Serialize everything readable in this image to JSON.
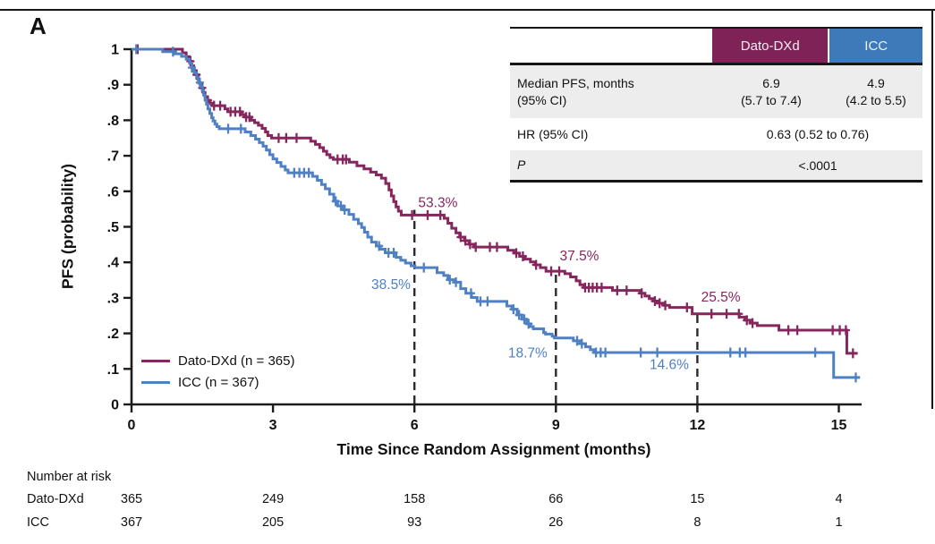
{
  "panel_label": "A",
  "colors": {
    "maroon": "#7E2257",
    "maroon_line": "#85265D",
    "blue_header": "#3E79B9",
    "blue_line": "#4F80C4",
    "blue_text": "#5583C6",
    "row_gray": "#EDEDED",
    "axis": "#1c1c1c"
  },
  "stats_table": {
    "col_headers": [
      "Dato-DXd",
      "ICC"
    ],
    "rows": [
      {
        "label_line1": "Median PFS, months",
        "label_line2": "(95% CI)",
        "dato_line1": "6.9",
        "dato_line2": "(5.7 to 7.4)",
        "icc_line1": "4.9",
        "icc_line2": "(4.2 to 5.5)"
      },
      {
        "label": "HR (95% CI)",
        "value": "0.63 (0.52 to 0.76)"
      },
      {
        "label": "P",
        "value": "<.0001"
      }
    ]
  },
  "chart_data": {
    "type": "line",
    "subtype": "kaplan-meier-step",
    "title": "",
    "xlabel": "Time Since Random Assignment (months)",
    "ylabel": "PFS (probability)",
    "xlim": [
      0,
      15.5
    ],
    "ylim": [
      0,
      1
    ],
    "xticks": [
      0,
      3,
      6,
      9,
      12,
      15
    ],
    "ytick_labels": [
      "0",
      ".1",
      ".2",
      ".3",
      ".4",
      ".5",
      ".6",
      ".7",
      ".8",
      ".9",
      "1"
    ],
    "grid": false,
    "legend_position": "lower-left-inside",
    "series": [
      {
        "name": "Dato-DXd (n = 365)",
        "color_key": "maroon_line",
        "steps": [
          [
            0,
            1
          ],
          [
            1.08,
            0.99
          ],
          [
            1.16,
            0.979
          ],
          [
            1.23,
            0.966
          ],
          [
            1.27,
            0.953
          ],
          [
            1.32,
            0.94
          ],
          [
            1.37,
            0.928
          ],
          [
            1.41,
            0.916
          ],
          [
            1.44,
            0.904
          ],
          [
            1.48,
            0.891
          ],
          [
            1.52,
            0.878
          ],
          [
            1.56,
            0.866
          ],
          [
            1.61,
            0.856
          ],
          [
            1.66,
            0.848
          ],
          [
            1.72,
            0.841
          ],
          [
            1.98,
            0.832
          ],
          [
            2.04,
            0.824
          ],
          [
            2.34,
            0.816
          ],
          [
            2.41,
            0.809
          ],
          [
            2.54,
            0.8
          ],
          [
            2.61,
            0.793
          ],
          [
            2.69,
            0.786
          ],
          [
            2.77,
            0.777
          ],
          [
            2.84,
            0.767
          ],
          [
            2.89,
            0.757
          ],
          [
            2.97,
            0.75
          ],
          [
            3.8,
            0.741
          ],
          [
            3.9,
            0.732
          ],
          [
            3.99,
            0.723
          ],
          [
            4.07,
            0.713
          ],
          [
            4.14,
            0.703
          ],
          [
            4.21,
            0.695
          ],
          [
            4.28,
            0.69
          ],
          [
            4.62,
            0.682
          ],
          [
            4.78,
            0.672
          ],
          [
            4.93,
            0.663
          ],
          [
            5.07,
            0.654
          ],
          [
            5.19,
            0.646
          ],
          [
            5.3,
            0.637
          ],
          [
            5.39,
            0.622
          ],
          [
            5.46,
            0.604
          ],
          [
            5.51,
            0.587
          ],
          [
            5.56,
            0.571
          ],
          [
            5.61,
            0.556
          ],
          [
            5.66,
            0.544
          ],
          [
            5.72,
            0.533
          ],
          [
            6.63,
            0.524
          ],
          [
            6.71,
            0.51
          ],
          [
            6.79,
            0.496
          ],
          [
            6.88,
            0.483
          ],
          [
            6.96,
            0.471
          ],
          [
            7.06,
            0.461
          ],
          [
            7.16,
            0.451
          ],
          [
            7.26,
            0.443
          ],
          [
            7.98,
            0.434
          ],
          [
            8.11,
            0.426
          ],
          [
            8.23,
            0.417
          ],
          [
            8.34,
            0.409
          ],
          [
            8.46,
            0.401
          ],
          [
            8.56,
            0.393
          ],
          [
            8.67,
            0.385
          ],
          [
            8.79,
            0.375
          ],
          [
            9.19,
            0.368
          ],
          [
            9.31,
            0.359
          ],
          [
            9.43,
            0.348
          ],
          [
            9.51,
            0.337
          ],
          [
            9.59,
            0.329
          ],
          [
            10.2,
            0.321
          ],
          [
            10.79,
            0.313
          ],
          [
            10.89,
            0.305
          ],
          [
            10.98,
            0.298
          ],
          [
            11.07,
            0.291
          ],
          [
            11.17,
            0.285
          ],
          [
            11.29,
            0.279
          ],
          [
            11.41,
            0.273
          ],
          [
            11.89,
            0.255
          ],
          [
            12.89,
            0.246
          ],
          [
            13.01,
            0.237
          ],
          [
            13.12,
            0.229
          ],
          [
            13.27,
            0.222
          ],
          [
            13.73,
            0.209
          ],
          [
            15.17,
            0.144
          ],
          [
            15.4,
            0.144
          ]
        ],
        "censor_times": [
          0.13,
          1.25,
          1.38,
          1.5,
          1.62,
          1.75,
          1.88,
          2.1,
          2.2,
          2.3,
          2.43,
          2.5,
          3.12,
          3.28,
          3.5,
          4.37,
          4.48,
          4.55,
          5.95,
          6.28,
          6.55,
          6.98,
          7.08,
          7.18,
          7.3,
          7.6,
          7.75,
          8.16,
          8.3,
          8.58,
          8.9,
          9.07,
          9.62,
          9.7,
          9.78,
          9.87,
          9.97,
          10.3,
          10.5,
          10.82,
          11.1,
          11.2,
          11.32,
          11.78,
          12.3,
          12.62,
          12.88,
          13.05,
          13.17,
          13.93,
          14.12,
          14.87,
          15.02,
          15.15,
          15.3
        ]
      },
      {
        "name": "ICC (n = 367)",
        "color_key": "blue_line",
        "steps": [
          [
            0,
            1
          ],
          [
            0.66,
            0.993
          ],
          [
            0.92,
            0.987
          ],
          [
            1.06,
            0.98
          ],
          [
            1.16,
            0.972
          ],
          [
            1.23,
            0.961
          ],
          [
            1.28,
            0.948
          ],
          [
            1.33,
            0.934
          ],
          [
            1.38,
            0.92
          ],
          [
            1.42,
            0.906
          ],
          [
            1.46,
            0.896
          ],
          [
            1.5,
            0.884
          ],
          [
            1.53,
            0.871
          ],
          [
            1.56,
            0.858
          ],
          [
            1.59,
            0.845
          ],
          [
            1.62,
            0.832
          ],
          [
            1.66,
            0.819
          ],
          [
            1.7,
            0.807
          ],
          [
            1.73,
            0.798
          ],
          [
            1.77,
            0.789
          ],
          [
            1.81,
            0.782
          ],
          [
            1.86,
            0.776
          ],
          [
            2.41,
            0.767
          ],
          [
            2.53,
            0.757
          ],
          [
            2.63,
            0.747
          ],
          [
            2.71,
            0.737
          ],
          [
            2.79,
            0.727
          ],
          [
            2.86,
            0.716
          ],
          [
            2.93,
            0.703
          ],
          [
            3,
            0.691
          ],
          [
            3.08,
            0.681
          ],
          [
            3.17,
            0.67
          ],
          [
            3.26,
            0.66
          ],
          [
            3.32,
            0.652
          ],
          [
            3.84,
            0.642
          ],
          [
            3.94,
            0.631
          ],
          [
            4.03,
            0.619
          ],
          [
            4.11,
            0.607
          ],
          [
            4.2,
            0.592
          ],
          [
            4.29,
            0.572
          ],
          [
            4.37,
            0.559
          ],
          [
            4.49,
            0.548
          ],
          [
            4.61,
            0.535
          ],
          [
            4.71,
            0.521
          ],
          [
            4.81,
            0.509
          ],
          [
            4.88,
            0.498
          ],
          [
            4.94,
            0.485
          ],
          [
            5.01,
            0.471
          ],
          [
            5.09,
            0.457
          ],
          [
            5.19,
            0.446
          ],
          [
            5.28,
            0.437
          ],
          [
            5.38,
            0.427
          ],
          [
            5.61,
            0.414
          ],
          [
            5.71,
            0.406
          ],
          [
            5.81,
            0.398
          ],
          [
            5.93,
            0.39
          ],
          [
            6.01,
            0.385
          ],
          [
            6.48,
            0.371
          ],
          [
            6.62,
            0.363
          ],
          [
            6.71,
            0.351
          ],
          [
            6.86,
            0.344
          ],
          [
            6.98,
            0.326
          ],
          [
            7.09,
            0.313
          ],
          [
            7.21,
            0.301
          ],
          [
            7.33,
            0.29
          ],
          [
            7.96,
            0.277
          ],
          [
            8.07,
            0.268
          ],
          [
            8.18,
            0.252
          ],
          [
            8.28,
            0.24
          ],
          [
            8.38,
            0.227
          ],
          [
            8.46,
            0.219
          ],
          [
            8.52,
            0.213
          ],
          [
            8.74,
            0.202
          ],
          [
            8.78,
            0.198
          ],
          [
            8.92,
            0.192
          ],
          [
            8.97,
            0.187
          ],
          [
            9.37,
            0.179
          ],
          [
            9.51,
            0.171
          ],
          [
            9.63,
            0.162
          ],
          [
            9.73,
            0.154
          ],
          [
            9.81,
            0.146
          ],
          [
            14.89,
            0.076
          ],
          [
            15.45,
            0.076
          ]
        ],
        "censor_times": [
          0.1,
          0.88,
          1.28,
          1.45,
          2.05,
          2.32,
          3.45,
          3.56,
          3.66,
          3.76,
          4.33,
          4.44,
          4.52,
          5.25,
          5.45,
          5.56,
          6.2,
          6.75,
          6.88,
          7.2,
          7.4,
          7.55,
          8.1,
          8.22,
          8.33,
          8.42,
          9.45,
          9.55,
          9.85,
          9.95,
          10.05,
          10.8,
          11.15,
          12.7,
          12.9,
          13.02,
          14.5,
          15.36
        ]
      }
    ],
    "dashed_lines": [
      {
        "x": 6,
        "top_p": 0.548
      },
      {
        "x": 9,
        "top_p": 0.378
      },
      {
        "x": 12,
        "top_p": 0.258
      }
    ],
    "annotations": [
      {
        "text": "53.3%",
        "series": 0,
        "x": 6.08,
        "p": 0.555,
        "anchor": "start"
      },
      {
        "text": "38.5%",
        "series": 1,
        "x": 5.92,
        "p": 0.325,
        "anchor": "end"
      },
      {
        "text": "37.5%",
        "series": 0,
        "x": 9.08,
        "p": 0.405,
        "anchor": "start"
      },
      {
        "text": "18.7%",
        "series": 1,
        "x": 8.82,
        "p": 0.132,
        "anchor": "end"
      },
      {
        "text": "25.5%",
        "series": 0,
        "x": 12.08,
        "p": 0.29,
        "anchor": "start"
      },
      {
        "text": "14.6%",
        "series": 1,
        "x": 11.82,
        "p": 0.1,
        "anchor": "end"
      }
    ],
    "risk_table": {
      "title": "Number at risk",
      "rows": [
        {
          "label": "Dato-DXd",
          "values": [
            365,
            249,
            158,
            66,
            15,
            4
          ]
        },
        {
          "label": "ICC",
          "values": [
            367,
            205,
            93,
            26,
            8,
            1
          ]
        }
      ]
    }
  }
}
